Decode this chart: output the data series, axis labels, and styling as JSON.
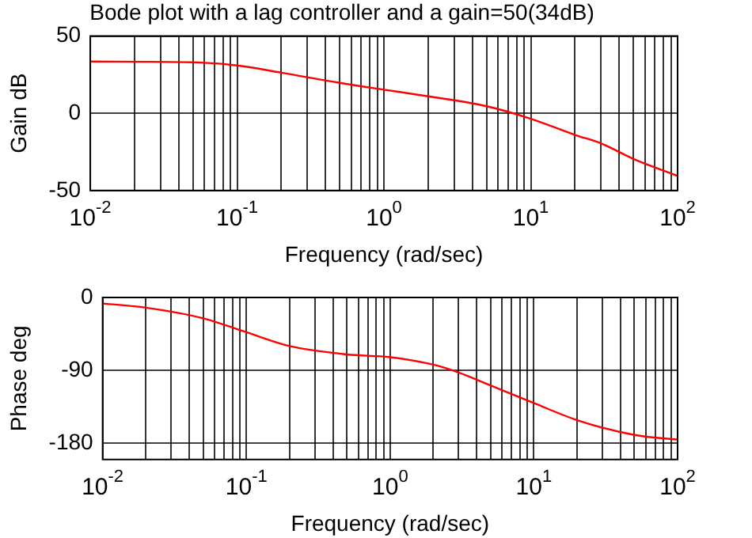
{
  "chart_data": [
    {
      "type": "line",
      "title": "Bode plot with a lag controller and a gain=50(34dB)",
      "xlabel": "Frequency (rad/sec)",
      "ylabel": "Gain dB",
      "log": "x",
      "grid": true,
      "marker": "none",
      "x": [
        0.01,
        0.05,
        0.1,
        0.2,
        0.5,
        1,
        2,
        5,
        10,
        20,
        30,
        50,
        100
      ],
      "series": [
        {
          "color": "#ff0000",
          "values": [
            33.5,
            33,
            31,
            26.3,
            19.7,
            15.3,
            11,
            4.6,
            -3.5,
            -14,
            -19.4,
            -29.5,
            -40.5
          ]
        }
      ],
      "xlim": [
        0.01,
        100
      ],
      "ylim": [
        -50,
        50
      ],
      "yticks": [
        -50,
        0,
        50
      ],
      "xticks": [
        {
          "value": 0.01,
          "label": "10$^{-2}$"
        },
        {
          "value": 0.02,
          "label": null
        },
        {
          "value": 0.03,
          "label": null
        },
        {
          "value": 0.04,
          "label": null
        },
        {
          "value": 0.05,
          "label": null
        },
        {
          "value": 0.06,
          "label": null
        },
        {
          "value": 0.07,
          "label": null
        },
        {
          "value": 0.08,
          "label": null
        },
        {
          "value": 0.09,
          "label": null
        },
        {
          "value": 0.1,
          "label": "10$^{-1}$"
        },
        {
          "value": 0.2,
          "label": null
        },
        {
          "value": 0.3,
          "label": null
        },
        {
          "value": 0.4,
          "label": null
        },
        {
          "value": 0.5,
          "label": null
        },
        {
          "value": 0.6,
          "label": null
        },
        {
          "value": 0.7,
          "label": null
        },
        {
          "value": 0.8,
          "label": null
        },
        {
          "value": 0.9,
          "label": null
        },
        {
          "value": 1,
          "label": "10$^{0}$"
        },
        {
          "value": 2,
          "label": null
        },
        {
          "value": 3,
          "label": null
        },
        {
          "value": 4,
          "label": null
        },
        {
          "value": 5,
          "label": null
        },
        {
          "value": 6,
          "label": null
        },
        {
          "value": 7,
          "label": null
        },
        {
          "value": 8,
          "label": null
        },
        {
          "value": 9,
          "label": null
        },
        {
          "value": 10,
          "label": "10$^{1}$"
        },
        {
          "value": 20,
          "label": null
        },
        {
          "value": 30,
          "label": null
        },
        {
          "value": 40,
          "label": null
        },
        {
          "value": 50,
          "label": null
        },
        {
          "value": 60,
          "label": null
        },
        {
          "value": 70,
          "label": null
        },
        {
          "value": 80,
          "label": null
        },
        {
          "value": 90,
          "label": null
        },
        {
          "value": 100,
          "label": "10$^{2}$"
        }
      ]
    },
    {
      "type": "line",
      "xlabel": "Frequency (rad/sec)",
      "ylabel": "Phase deg",
      "log": "x",
      "grid": true,
      "marker": "none",
      "x": [
        0.01,
        0.02,
        0.05,
        0.1,
        0.2,
        0.5,
        1,
        2,
        3,
        5,
        10,
        20,
        50,
        100
      ],
      "series": [
        {
          "color": "#ff0000",
          "values": [
            -7.4,
            -12.6,
            -25.7,
            -42.9,
            -60,
            -70.3,
            -73.7,
            -82.9,
            -92.6,
            -108.6,
            -130.3,
            -151.4,
            -169.7,
            -175.4
          ]
        }
      ],
      "xlim": [
        0.01,
        100
      ],
      "ylim": [
        -200,
        0
      ],
      "yticks": [
        -180,
        -90,
        0
      ],
      "xticks": [
        {
          "value": 0.01,
          "label": "10$^{-2}$"
        },
        {
          "value": 0.02,
          "label": null
        },
        {
          "value": 0.03,
          "label": null
        },
        {
          "value": 0.04,
          "label": null
        },
        {
          "value": 0.05,
          "label": null
        },
        {
          "value": 0.06,
          "label": null
        },
        {
          "value": 0.07,
          "label": null
        },
        {
          "value": 0.08,
          "label": null
        },
        {
          "value": 0.09,
          "label": null
        },
        {
          "value": 0.1,
          "label": "10$^{-1}$"
        },
        {
          "value": 0.2,
          "label": null
        },
        {
          "value": 0.3,
          "label": null
        },
        {
          "value": 0.4,
          "label": null
        },
        {
          "value": 0.5,
          "label": null
        },
        {
          "value": 0.6,
          "label": null
        },
        {
          "value": 0.7,
          "label": null
        },
        {
          "value": 0.8,
          "label": null
        },
        {
          "value": 0.9,
          "label": null
        },
        {
          "value": 1,
          "label": "10$^{0}$"
        },
        {
          "value": 2,
          "label": null
        },
        {
          "value": 3,
          "label": null
        },
        {
          "value": 4,
          "label": null
        },
        {
          "value": 5,
          "label": null
        },
        {
          "value": 6,
          "label": null
        },
        {
          "value": 7,
          "label": null
        },
        {
          "value": 8,
          "label": null
        },
        {
          "value": 9,
          "label": null
        },
        {
          "value": 10,
          "label": "10$^{1}$"
        },
        {
          "value": 20,
          "label": null
        },
        {
          "value": 30,
          "label": null
        },
        {
          "value": 40,
          "label": null
        },
        {
          "value": 50,
          "label": null
        },
        {
          "value": 60,
          "label": null
        },
        {
          "value": 70,
          "label": null
        },
        {
          "value": 80,
          "label": null
        },
        {
          "value": 90,
          "label": null
        },
        {
          "value": 100,
          "label": "10$^{2}$"
        }
      ]
    }
  ]
}
